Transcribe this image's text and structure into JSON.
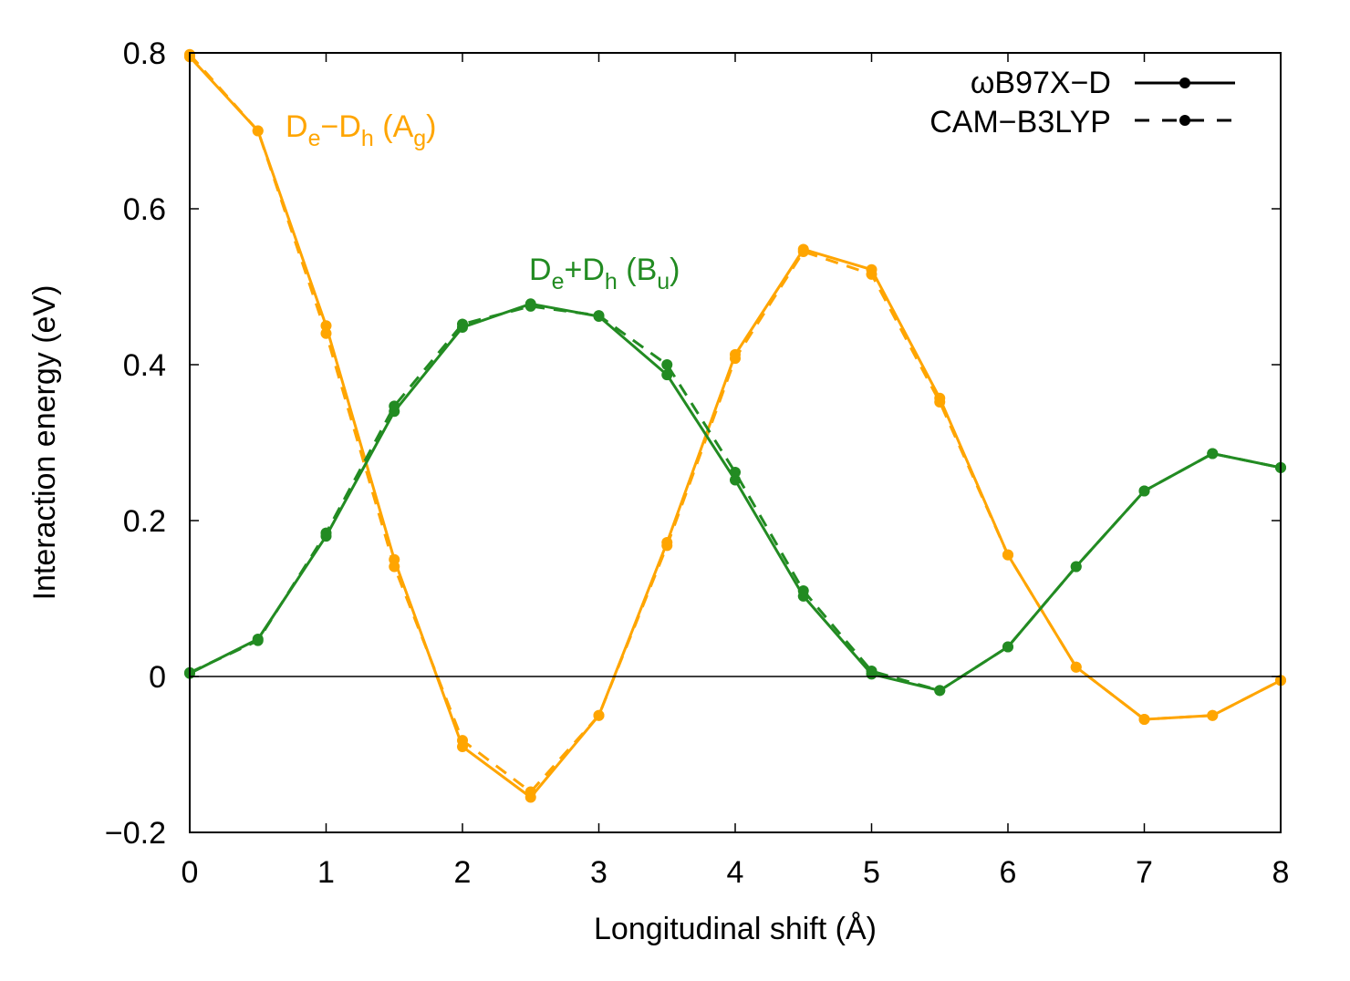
{
  "chart_data": {
    "type": "line",
    "xlabel": "Longitudinal shift (Å)",
    "ylabel": "Interaction energy (eV)",
    "xlim": [
      0,
      8
    ],
    "ylim": [
      -0.2,
      0.8
    ],
    "xticks": [
      0,
      1,
      2,
      3,
      4,
      5,
      6,
      7,
      8
    ],
    "xtick_labels": [
      "0",
      "1",
      "2",
      "3",
      "4",
      "5",
      "6",
      "7",
      "8"
    ],
    "yticks": [
      -0.2,
      0,
      0.2,
      0.4,
      0.6,
      0.8
    ],
    "ytick_labels": [
      "−0.2",
      "0",
      "0.2",
      "0.4",
      "0.6",
      "0.8"
    ],
    "zero_line": true,
    "grid": false,
    "legend_position": "top-right",
    "legend": [
      {
        "label": "ωB97X−D",
        "style": "solid"
      },
      {
        "label": "CAM−B3LYP",
        "style": "dashed"
      }
    ],
    "colors": {
      "orange": "#ffa500",
      "green": "#228b22",
      "black": "#000000"
    },
    "annotations": {
      "orange": {
        "base1": "D",
        "sub1": "e",
        "mid": "−D",
        "sub2": "h",
        "open": " (A",
        "sub3": "g",
        "close": ")"
      },
      "green": {
        "base1": "D",
        "sub1": "e",
        "mid": "+D",
        "sub2": "h",
        "open": " (B",
        "sub3": "u",
        "close": ")"
      }
    },
    "x": [
      0,
      0.5,
      1,
      1.5,
      2,
      2.5,
      3,
      3.5,
      4,
      4.5,
      5,
      5.5,
      6,
      6.5,
      7,
      7.5,
      8
    ],
    "series": [
      {
        "name": "D_e−D_h (A_g) ωB97X−D",
        "color": "orange",
        "style": "solid",
        "values": [
          0.795,
          0.7,
          0.45,
          0.15,
          -0.09,
          -0.155,
          -0.05,
          0.172,
          0.413,
          0.548,
          0.522,
          0.357,
          0.156,
          0.012,
          -0.055,
          -0.05,
          -0.005
        ]
      },
      {
        "name": "D_e−D_h (A_g) CAM−B3LYP",
        "color": "orange",
        "style": "dashed",
        "values": [
          0.798,
          0.7,
          0.44,
          0.141,
          -0.082,
          -0.148,
          -0.05,
          0.168,
          0.408,
          0.545,
          0.516,
          0.352,
          0.156,
          0.012,
          -0.055,
          -0.05,
          -0.005
        ]
      },
      {
        "name": "D_e+D_h (B_u) ωB97X−D",
        "color": "green",
        "style": "solid",
        "values": [
          0.004,
          0.048,
          0.18,
          0.34,
          0.448,
          0.478,
          0.462,
          0.387,
          0.252,
          0.103,
          0.003,
          -0.018,
          0.038,
          0.141,
          0.238,
          0.286,
          0.268
        ]
      },
      {
        "name": "D_e+D_h (B_u) CAM−B3LYP",
        "color": "green",
        "style": "dashed",
        "values": [
          0.005,
          0.046,
          0.184,
          0.347,
          0.452,
          0.475,
          0.463,
          0.4,
          0.262,
          0.11,
          0.007,
          -0.018,
          0.038,
          0.141,
          0.238,
          0.286,
          0.268
        ]
      }
    ]
  }
}
